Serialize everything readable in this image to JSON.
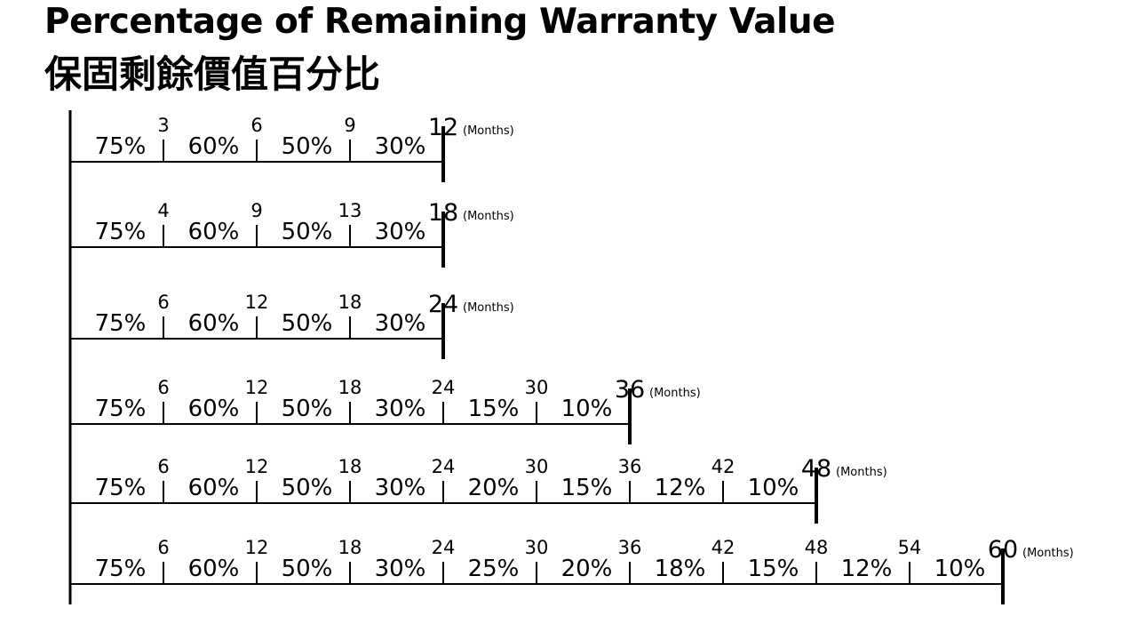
{
  "title": "Percentage of Remaining Warranty Value",
  "subtitle": "保固剩餘價值百分比",
  "unit_label": "(Months)",
  "colors": {
    "line": "#000000",
    "text": "#000000",
    "background": "#ffffff"
  },
  "chart_data": {
    "type": "table",
    "timelines": [
      {
        "term": "12",
        "ticks": [
          "3",
          "6",
          "9"
        ],
        "percents": [
          "75%",
          "60%",
          "50%",
          "30%"
        ]
      },
      {
        "term": "18",
        "ticks": [
          "4",
          "9",
          "13"
        ],
        "percents": [
          "75%",
          "60%",
          "50%",
          "30%"
        ]
      },
      {
        "term": "24",
        "ticks": [
          "6",
          "12",
          "18"
        ],
        "percents": [
          "75%",
          "60%",
          "50%",
          "30%"
        ]
      },
      {
        "term": "36",
        "ticks": [
          "6",
          "12",
          "18",
          "24",
          "30"
        ],
        "percents": [
          "75%",
          "60%",
          "50%",
          "30%",
          "15%",
          "10%"
        ]
      },
      {
        "term": "48",
        "ticks": [
          "6",
          "12",
          "18",
          "24",
          "30",
          "36",
          "42"
        ],
        "percents": [
          "75%",
          "60%",
          "50%",
          "30%",
          "20%",
          "15%",
          "12%",
          "10%"
        ]
      },
      {
        "term": "60",
        "ticks": [
          "6",
          "12",
          "18",
          "24",
          "30",
          "36",
          "42",
          "48",
          "54"
        ],
        "percents": [
          "75%",
          "60%",
          "50%",
          "30%",
          "25%",
          "20%",
          "18%",
          "15%",
          "12%",
          "10%"
        ]
      }
    ]
  }
}
